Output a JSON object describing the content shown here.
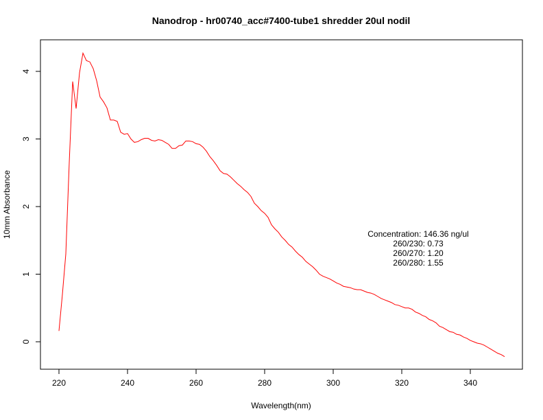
{
  "chart_data": {
    "type": "line",
    "title": "Nanodrop - hr00740_acc#7400-tube1 shredder 20ul nodil",
    "xlabel": "Wavelength(nm)",
    "ylabel": "10mm Absorbance",
    "xlim": [
      220,
      350
    ],
    "ylim": [
      -0.23,
      4.27
    ],
    "x_ticks": [
      220,
      240,
      260,
      280,
      300,
      320,
      340
    ],
    "x_tick_labels": [
      "220",
      "240",
      "260",
      "280",
      "300",
      "320",
      "340"
    ],
    "y_ticks": [
      0,
      1,
      2,
      3,
      4
    ],
    "y_tick_labels": [
      "0",
      "1",
      "2",
      "3",
      "4"
    ],
    "series_color": "#ff0000",
    "x": [
      220,
      221,
      222,
      223,
      224,
      225,
      226,
      227,
      228,
      229,
      230,
      231,
      232,
      233,
      234,
      235,
      236,
      237,
      238,
      239,
      240,
      241,
      242,
      243,
      244,
      245,
      246,
      247,
      248,
      249,
      250,
      251,
      252,
      253,
      254,
      255,
      256,
      257,
      258,
      259,
      260,
      261,
      262,
      263,
      264,
      265,
      266,
      267,
      268,
      269,
      270,
      271,
      272,
      273,
      274,
      275,
      276,
      277,
      278,
      279,
      280,
      281,
      282,
      283,
      284,
      285,
      286,
      287,
      288,
      289,
      290,
      291,
      292,
      293,
      294,
      295,
      296,
      297,
      298,
      299,
      300,
      301,
      302,
      303,
      304,
      305,
      306,
      307,
      308,
      309,
      310,
      311,
      312,
      313,
      314,
      315,
      316,
      317,
      318,
      319,
      320,
      321,
      322,
      323,
      324,
      325,
      326,
      327,
      328,
      329,
      330,
      331,
      332,
      333,
      334,
      335,
      336,
      337,
      338,
      339,
      340,
      341,
      342,
      343,
      344,
      345,
      346,
      347,
      348,
      349,
      350
    ],
    "y": [
      0.16,
      0.7,
      1.3,
      2.65,
      3.85,
      3.45,
      3.98,
      4.27,
      4.16,
      4.14,
      4.04,
      3.86,
      3.62,
      3.55,
      3.46,
      3.28,
      3.28,
      3.26,
      3.1,
      3.07,
      3.08,
      3.0,
      2.95,
      2.96,
      2.99,
      3.01,
      3.01,
      2.98,
      2.97,
      2.99,
      2.98,
      2.95,
      2.92,
      2.86,
      2.86,
      2.9,
      2.91,
      2.97,
      2.97,
      2.96,
      2.93,
      2.92,
      2.88,
      2.82,
      2.74,
      2.68,
      2.61,
      2.53,
      2.49,
      2.48,
      2.44,
      2.39,
      2.34,
      2.3,
      2.25,
      2.21,
      2.15,
      2.05,
      2.0,
      1.94,
      1.9,
      1.84,
      1.73,
      1.67,
      1.62,
      1.55,
      1.5,
      1.44,
      1.4,
      1.34,
      1.29,
      1.25,
      1.19,
      1.15,
      1.11,
      1.06,
      1.0,
      0.97,
      0.95,
      0.93,
      0.9,
      0.87,
      0.85,
      0.82,
      0.81,
      0.8,
      0.78,
      0.77,
      0.77,
      0.75,
      0.73,
      0.72,
      0.7,
      0.67,
      0.64,
      0.62,
      0.6,
      0.58,
      0.55,
      0.54,
      0.52,
      0.5,
      0.5,
      0.48,
      0.44,
      0.42,
      0.39,
      0.37,
      0.33,
      0.31,
      0.28,
      0.23,
      0.21,
      0.18,
      0.15,
      0.14,
      0.11,
      0.1,
      0.07,
      0.05,
      0.02,
      0.0,
      -0.02,
      -0.03,
      -0.05,
      -0.08,
      -0.11,
      -0.14,
      -0.17,
      -0.19,
      -0.22
    ]
  },
  "annotation": {
    "lines": [
      "Concentration: 146.36 ng/ul",
      "260/230: 0.73",
      "260/270: 1.20",
      "260/280: 1.55"
    ]
  }
}
